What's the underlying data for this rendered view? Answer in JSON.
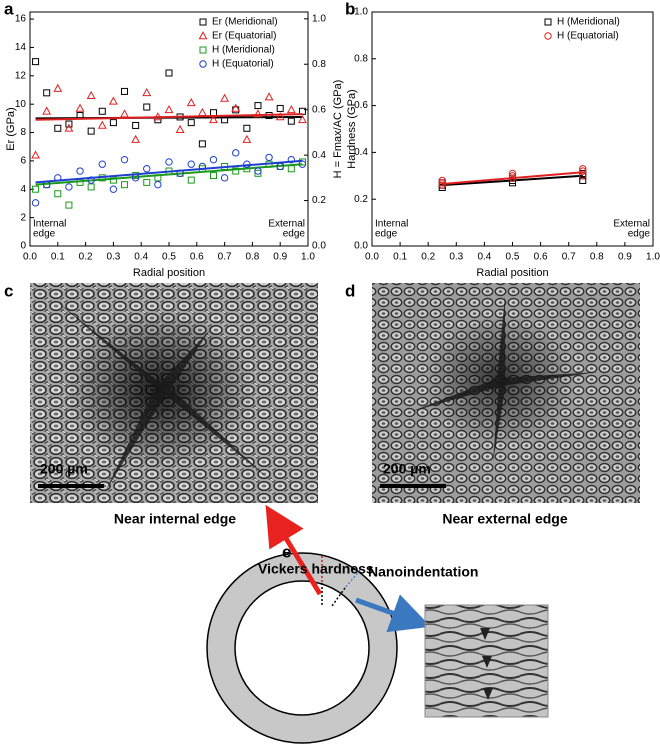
{
  "chart_data": [
    {
      "type": "scatter",
      "panel_label": "a",
      "xlabel": "Radial position",
      "ylabel": "Er (GPa)",
      "y2label": "H = Fmax/AC (GPa)",
      "xlim": [
        0,
        1
      ],
      "xticks": [
        {
          "value": 0,
          "label": "0.0"
        },
        {
          "value": 0.1,
          "label": "0.1"
        },
        {
          "value": 0.2,
          "label": "0.2"
        },
        {
          "value": 0.3,
          "label": "0.3"
        },
        {
          "value": 0.4,
          "label": "0.4"
        },
        {
          "value": 0.5,
          "label": "0.5"
        },
        {
          "value": 0.6,
          "label": "0.6"
        },
        {
          "value": 0.7,
          "label": "0.7"
        },
        {
          "value": 0.8,
          "label": "0.8"
        },
        {
          "value": 0.9,
          "label": "0.9"
        },
        {
          "value": 1,
          "label": "1.0"
        }
      ],
      "ylim": [
        0,
        16.5
      ],
      "yticks": [
        0,
        2,
        4,
        6,
        8,
        10,
        12,
        14,
        16
      ],
      "y2lim": [
        0,
        1.03
      ],
      "y2ticks": [
        {
          "value": 0,
          "label": "0.0"
        },
        {
          "value": 0.2,
          "label": "0.2"
        },
        {
          "value": 0.4,
          "label": "0.4"
        },
        {
          "value": 0.6,
          "label": "0.6"
        },
        {
          "value": 0.8,
          "label": "0.8"
        },
        {
          "value": 1,
          "label": "1.0"
        }
      ],
      "annotations": [
        [
          "Internal",
          "edge"
        ],
        [
          "External",
          "edge"
        ]
      ],
      "x": [
        0.02,
        0.06,
        0.1,
        0.14,
        0.18,
        0.22,
        0.26,
        0.3,
        0.34,
        0.38,
        0.42,
        0.46,
        0.5,
        0.54,
        0.58,
        0.62,
        0.66,
        0.7,
        0.74,
        0.78,
        0.82,
        0.86,
        0.9,
        0.94,
        0.98
      ],
      "fit_x": [
        0.02,
        0.98
      ],
      "series": [
        {
          "name": "Er (Meridional)",
          "color": "#000000",
          "marker": "square",
          "values": [
            13,
            10.8,
            8.3,
            8.6,
            9.2,
            8.1,
            9.5,
            8.7,
            10.9,
            8.5,
            9.8,
            8.9,
            12.2,
            9.1,
            8.7,
            7.2,
            9.4,
            8.9,
            9.6,
            8.3,
            9.9,
            9.2,
            9.7,
            8.8,
            9.5
          ],
          "fit": [
            9.0,
            9.1
          ]
        },
        {
          "name": "Er (Equatorial)",
          "color": "#e02020",
          "marker": "triangle",
          "values": [
            6.4,
            9.5,
            11.1,
            8.3,
            9.7,
            10.6,
            8.5,
            10.2,
            9.3,
            7.5,
            10.8,
            9.1,
            9.6,
            8.2,
            10.1,
            9.4,
            8.9,
            10.4,
            9.7,
            7.5,
            9.3,
            10.5,
            9.1,
            9.6,
            8.9
          ],
          "fit": [
            8.9,
            9.3
          ]
        },
        {
          "name": "H (Meridional)",
          "color": "#1a9a1a",
          "marker": "square",
          "axis": "y2",
          "values": [
            0.25,
            0.27,
            0.23,
            0.18,
            0.28,
            0.26,
            0.3,
            0.29,
            0.27,
            0.31,
            0.28,
            0.3,
            0.33,
            0.32,
            0.29,
            0.34,
            0.31,
            0.35,
            0.33,
            0.34,
            0.32,
            0.36,
            0.35,
            0.34,
            0.37
          ],
          "fit": [
            0.27,
            0.36
          ]
        },
        {
          "name": "H (Equatorial)",
          "color": "#1f3fd0",
          "marker": "circle",
          "axis": "y2",
          "values": [
            0.19,
            0.27,
            0.3,
            0.26,
            0.33,
            0.29,
            0.36,
            0.25,
            0.38,
            0.3,
            0.34,
            0.27,
            0.37,
            0.32,
            0.36,
            0.35,
            0.38,
            0.3,
            0.41,
            0.36,
            0.33,
            0.39,
            0.35,
            0.38,
            0.36
          ],
          "fit": [
            0.28,
            0.375
          ]
        }
      ]
    },
    {
      "type": "scatter",
      "panel_label": "b",
      "xlabel": "Radial position",
      "ylabel": "Hardness (GPa)",
      "xlim": [
        0,
        1
      ],
      "xticks": [
        {
          "value": 0,
          "label": "0.0"
        },
        {
          "value": 0.1,
          "label": "0.1"
        },
        {
          "value": 0.2,
          "label": "0.2"
        },
        {
          "value": 0.3,
          "label": "0.3"
        },
        {
          "value": 0.4,
          "label": "0.4"
        },
        {
          "value": 0.5,
          "label": "0.5"
        },
        {
          "value": 0.6,
          "label": "0.6"
        },
        {
          "value": 0.7,
          "label": "0.7"
        },
        {
          "value": 0.8,
          "label": "0.8"
        },
        {
          "value": 0.9,
          "label": "0.9"
        },
        {
          "value": 1,
          "label": "1.0"
        }
      ],
      "ylim": [
        0,
        1
      ],
      "yticks": [
        {
          "value": 0,
          "label": "0.0"
        },
        {
          "value": 0.2,
          "label": "0.2"
        },
        {
          "value": 0.4,
          "label": "0.4"
        },
        {
          "value": 0.6,
          "label": "0.6"
        },
        {
          "value": 0.8,
          "label": "0.8"
        },
        {
          "value": 1,
          "label": "1.0"
        }
      ],
      "annotations": [
        [
          "Internal",
          "edge"
        ],
        [
          "External",
          "edge"
        ]
      ],
      "x": [
        0.25,
        0.25,
        0.25,
        0.5,
        0.5,
        0.5,
        0.75,
        0.75,
        0.75
      ],
      "fit_x": [
        0.25,
        0.75
      ],
      "series": [
        {
          "name": "H (Meridional)",
          "color": "#000000",
          "marker": "square",
          "values": [
            0.25,
            0.26,
            0.27,
            0.27,
            0.28,
            0.29,
            0.28,
            0.3,
            0.31
          ],
          "fit": [
            0.26,
            0.3
          ]
        },
        {
          "name": "H (Equatorial)",
          "color": "#e02020",
          "marker": "circle",
          "values": [
            0.26,
            0.27,
            0.28,
            0.29,
            0.3,
            0.31,
            0.3,
            0.32,
            0.33
          ],
          "fit": [
            0.265,
            0.315
          ]
        }
      ]
    }
  ],
  "panels": {
    "c": {
      "label": "c",
      "scale_bar": "200 µm",
      "caption": "Near internal edge"
    },
    "d": {
      "label": "d",
      "scale_bar": "200 µm",
      "caption": "Near external edge"
    },
    "e": {
      "label": "e",
      "vickers": "Vickers hardness",
      "nano": "Nanoindentation"
    }
  }
}
